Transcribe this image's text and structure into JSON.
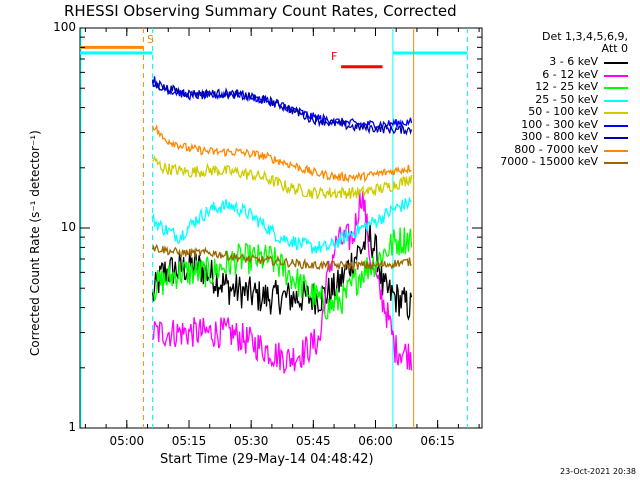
{
  "title": "RHESSI Observing Summary Count Rates, Corrected",
  "xlabel": "Start Time (29-May-14 04:48:42)",
  "ylabel": "Corrected Count Rate (s⁻¹ detector⁻¹)",
  "timestamp": "23-Oct-2021 20:38",
  "legend": {
    "header": [
      "Det 1,3,4,5,6,9,",
      "Att 0"
    ]
  },
  "flags": {
    "s_label": "S",
    "f_label": "F"
  },
  "chart_data": {
    "type": "line",
    "title": "RHESSI Observing Summary Count Rates, Corrected",
    "xlabel": "Start Time (29-May-14 04:48:42)",
    "ylabel": "Corrected Count Rate (s⁻¹ detector⁻¹)",
    "x_unit": "minutes after 04:48:42",
    "xlim": [
      0,
      97
    ],
    "ylim": [
      1,
      100
    ],
    "yscale": "log",
    "x_ticks": [
      {
        "label": "05:00",
        "value": 11.3
      },
      {
        "label": "05:15",
        "value": 26.3
      },
      {
        "label": "05:30",
        "value": 41.3
      },
      {
        "label": "05:45",
        "value": 56.3
      },
      {
        "label": "06:00",
        "value": 71.3
      },
      {
        "label": "06:15",
        "value": 86.3
      }
    ],
    "y_ticks": [
      {
        "label": "1",
        "value": 1
      },
      {
        "label": "10",
        "value": 10
      },
      {
        "label": "100",
        "value": 100
      }
    ],
    "legend_position": "top-right",
    "series": [
      {
        "name": "3 - 6 keV",
        "color": "#000000",
        "noise": 0.2,
        "x": [
          17.5,
          20,
          28,
          36,
          44,
          52,
          58,
          62,
          66,
          70,
          72,
          73,
          76,
          80
        ],
        "y": [
          4.5,
          6,
          6.5,
          5,
          4.5,
          4.5,
          4.5,
          5,
          7,
          9,
          7,
          5,
          4.5,
          4
        ]
      },
      {
        "name": "6 - 12 keV",
        "color": "#ff00ff",
        "noise": 0.18,
        "x": [
          17.5,
          22,
          30,
          36,
          46,
          50,
          54,
          58,
          60,
          62,
          66,
          68,
          69,
          70,
          72,
          76,
          80
        ],
        "y": [
          3,
          3,
          3,
          3,
          2.4,
          2.2,
          2.4,
          2.8,
          6,
          8.5,
          9,
          15,
          11,
          7,
          5,
          2.5,
          2.3
        ]
      },
      {
        "name": "12 - 25 keV",
        "color": "#00ff00",
        "noise": 0.18,
        "x": [
          17.5,
          24,
          32,
          38,
          46,
          54,
          60,
          64,
          68,
          72,
          76,
          80
        ],
        "y": [
          5,
          6,
          6,
          7,
          7,
          5,
          4,
          4.5,
          6,
          7,
          8.5,
          9
        ]
      },
      {
        "name": "25 - 50 keV",
        "color": "#00ffff",
        "noise": 0.08,
        "x": [
          17.5,
          20,
          24,
          28,
          32,
          36,
          40,
          44,
          48,
          52,
          56,
          60,
          64,
          68,
          72,
          76,
          80
        ],
        "y": [
          11,
          10,
          9,
          11,
          12.5,
          13,
          12,
          10.5,
          9,
          8.5,
          8,
          8,
          9,
          10,
          11,
          12.5,
          13.5
        ]
      },
      {
        "name": "50 - 100 keV",
        "color": "#cccc00",
        "noise": 0.07,
        "x": [
          17.5,
          20,
          26,
          32,
          38,
          44,
          50,
          56,
          62,
          68,
          74,
          78,
          80
        ],
        "y": [
          22,
          20,
          19,
          19.5,
          19,
          18,
          16,
          15,
          15,
          15,
          16,
          17,
          18
        ]
      },
      {
        "name": "100 - 300 keV",
        "color": "#0000ff",
        "noise": 0.05,
        "x": [
          17.5,
          20,
          26,
          32,
          38,
          44,
          50,
          56,
          62,
          68,
          74,
          80
        ],
        "y": [
          56,
          50,
          46,
          46,
          47,
          44,
          40,
          36,
          34,
          33,
          33,
          34
        ]
      },
      {
        "name": "300 - 800 keV",
        "color": "#0000aa",
        "noise": 0.05,
        "x": [
          17.5,
          26,
          36,
          46,
          56,
          66,
          76,
          80
        ],
        "y": [
          52,
          47,
          47,
          43,
          35,
          32,
          31,
          31
        ]
      },
      {
        "name": "800 - 7000 keV",
        "color": "#ff8800",
        "noise": 0.05,
        "x": [
          17.5,
          20,
          26,
          32,
          38,
          44,
          50,
          56,
          62,
          68,
          74,
          80
        ],
        "y": [
          33,
          28,
          25,
          24,
          24,
          23,
          21,
          19,
          18,
          18,
          19,
          20
        ]
      },
      {
        "name": "7000 - 15000 keV",
        "color": "#996600",
        "noise": 0.05,
        "x": [
          17.5,
          24,
          32,
          40,
          48,
          56,
          64,
          72,
          80
        ],
        "y": [
          8,
          7.5,
          7.5,
          7,
          6.8,
          6.5,
          6.5,
          6.5,
          6.8
        ]
      }
    ],
    "annotations": [
      {
        "label": "S",
        "kind": "attenuator_bar",
        "color": "#ff8800",
        "x_start": 0,
        "x_end": 15.3,
        "y": 80
      },
      {
        "label": "F",
        "kind": "flare_bar",
        "color": "#ff0000",
        "x_start": 63,
        "x_end": 73,
        "y": 64
      },
      {
        "label": "",
        "kind": "saa_bar",
        "color": "#00ffff",
        "x_start": 0,
        "x_end": 17.5,
        "y": 75
      },
      {
        "label": "",
        "kind": "saa_bar",
        "color": "#00ffff",
        "x_start": 75.5,
        "x_end": 93.5,
        "y": 75
      },
      {
        "label": "",
        "kind": "vline",
        "color": "#ff8800",
        "style": "dashed",
        "x": 15.3
      },
      {
        "label": "",
        "kind": "vline",
        "color": "#00ffff",
        "style": "dashed",
        "x": 17.5
      },
      {
        "label": "",
        "kind": "vline",
        "color": "#00ffff",
        "style": "solid",
        "x": 75.5
      },
      {
        "label": "",
        "kind": "vline",
        "color": "#ff8800",
        "style": "solid",
        "x": 80.5
      },
      {
        "label": "",
        "kind": "vline",
        "color": "#00ffff",
        "style": "dashed",
        "x": 93.5
      },
      {
        "label": "",
        "kind": "vline",
        "color": "#00ffff",
        "style": "solid",
        "x": 0.2
      }
    ]
  }
}
